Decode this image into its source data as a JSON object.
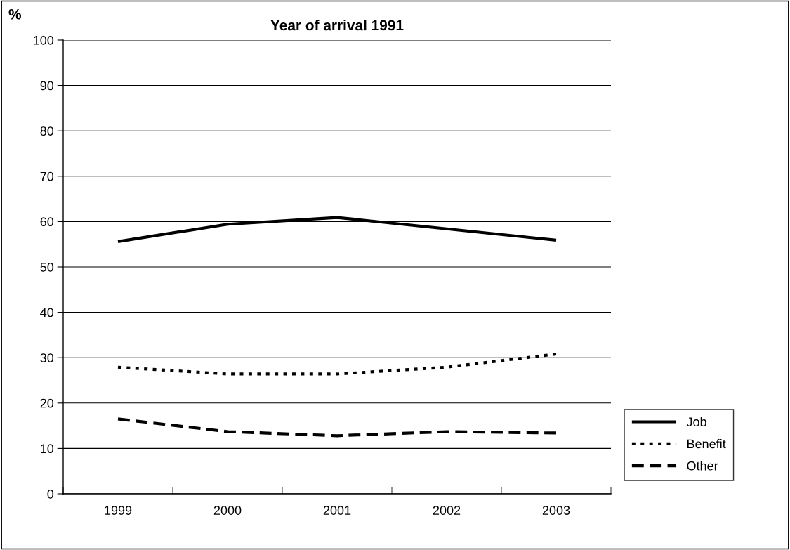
{
  "chart_data": {
    "type": "line",
    "title": "Year of arrival 1991",
    "ylabel": "%",
    "categories": [
      "1999",
      "2000",
      "2001",
      "2002",
      "2003"
    ],
    "series": [
      {
        "name": "Job",
        "color": "#000000",
        "line_style": "solid",
        "values": [
          55.6,
          59.4,
          60.9,
          58.4,
          55.9
        ]
      },
      {
        "name": "Benefit",
        "color": "#000000",
        "line_style": "dotted",
        "values": [
          27.9,
          26.4,
          26.4,
          27.9,
          30.8
        ]
      },
      {
        "name": "Other",
        "color": "#000000",
        "line_style": "dashed",
        "values": [
          16.5,
          13.7,
          12.8,
          13.7,
          13.4
        ]
      }
    ],
    "ylim": [
      0,
      100
    ],
    "yticks": [
      0,
      10,
      20,
      30,
      40,
      50,
      60,
      70,
      80,
      90,
      100
    ],
    "grid": "y",
    "legend": "bottom right",
    "marker": "none"
  }
}
